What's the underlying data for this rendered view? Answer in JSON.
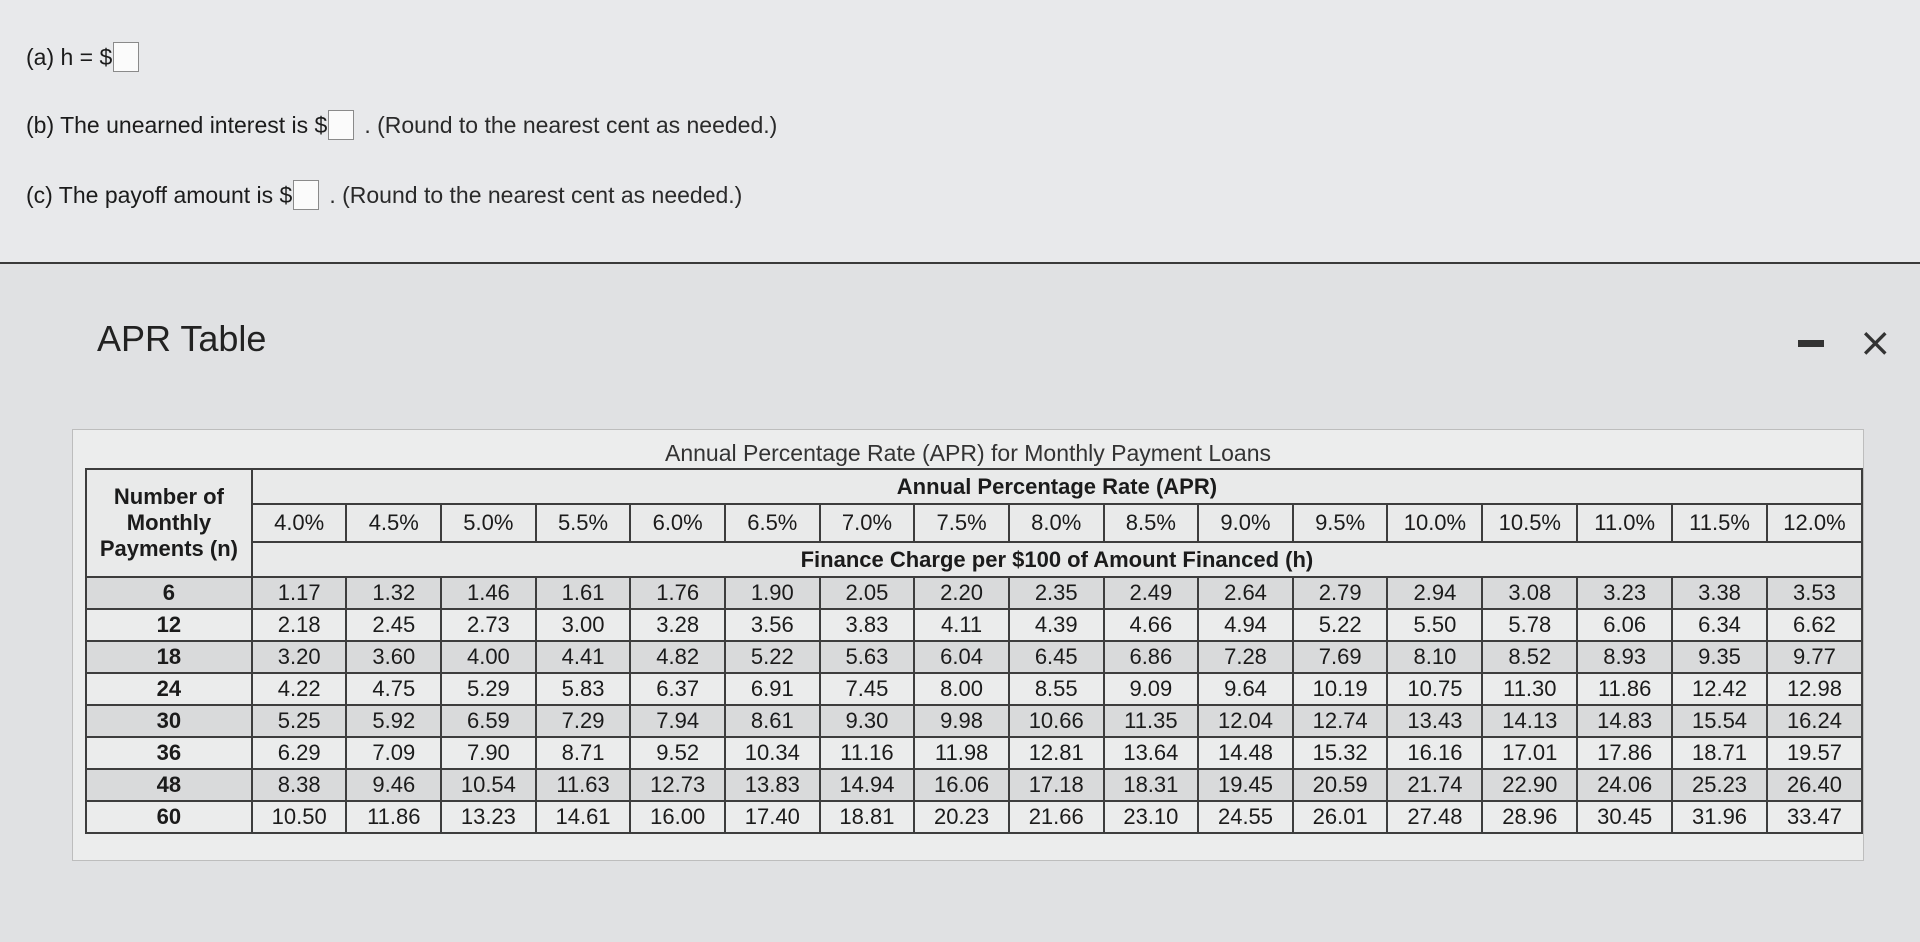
{
  "questions": {
    "a": {
      "lead": "(a) h = $",
      "hint": ""
    },
    "b": {
      "lead": "(b) The unearned interest is $",
      "hint": ". (Round to the nearest cent as needed.)"
    },
    "c": {
      "lead": "(c) The payoff amount is $",
      "hint": ". (Round to the nearest cent as needed.)"
    }
  },
  "window": {
    "title": "APR Table",
    "minimize_icon": "minimize-icon",
    "close_icon": "close-icon",
    "close_glyph": "×"
  },
  "table": {
    "caption": "Annual Percentage Rate (APR) for Monthly Payment Loans",
    "row_header": "Number of Monthly Payments (n)",
    "apr_header": "Annual Percentage Rate (APR)",
    "finance_header": "Finance Charge per $100 of Amount Financed (h)",
    "rates": [
      "4.0%",
      "4.5%",
      "5.0%",
      "5.5%",
      "6.0%",
      "6.5%",
      "7.0%",
      "7.5%",
      "8.0%",
      "8.5%",
      "9.0%",
      "9.5%",
      "10.0%",
      "10.5%",
      "11.0%",
      "11.5%",
      "12.0%"
    ],
    "rows": [
      {
        "n": "6",
        "values": [
          "1.17",
          "1.32",
          "1.46",
          "1.61",
          "1.76",
          "1.90",
          "2.05",
          "2.20",
          "2.35",
          "2.49",
          "2.64",
          "2.79",
          "2.94",
          "3.08",
          "3.23",
          "3.38",
          "3.53"
        ]
      },
      {
        "n": "12",
        "values": [
          "2.18",
          "2.45",
          "2.73",
          "3.00",
          "3.28",
          "3.56",
          "3.83",
          "4.11",
          "4.39",
          "4.66",
          "4.94",
          "5.22",
          "5.50",
          "5.78",
          "6.06",
          "6.34",
          "6.62"
        ]
      },
      {
        "n": "18",
        "values": [
          "3.20",
          "3.60",
          "4.00",
          "4.41",
          "4.82",
          "5.22",
          "5.63",
          "6.04",
          "6.45",
          "6.86",
          "7.28",
          "7.69",
          "8.10",
          "8.52",
          "8.93",
          "9.35",
          "9.77"
        ]
      },
      {
        "n": "24",
        "values": [
          "4.22",
          "4.75",
          "5.29",
          "5.83",
          "6.37",
          "6.91",
          "7.45",
          "8.00",
          "8.55",
          "9.09",
          "9.64",
          "10.19",
          "10.75",
          "11.30",
          "11.86",
          "12.42",
          "12.98"
        ]
      },
      {
        "n": "30",
        "values": [
          "5.25",
          "5.92",
          "6.59",
          "7.29",
          "7.94",
          "8.61",
          "9.30",
          "9.98",
          "10.66",
          "11.35",
          "12.04",
          "12.74",
          "13.43",
          "14.13",
          "14.83",
          "15.54",
          "16.24"
        ]
      },
      {
        "n": "36",
        "values": [
          "6.29",
          "7.09",
          "7.90",
          "8.71",
          "9.52",
          "10.34",
          "11.16",
          "11.98",
          "12.81",
          "13.64",
          "14.48",
          "15.32",
          "16.16",
          "17.01",
          "17.86",
          "18.71",
          "19.57"
        ]
      },
      {
        "n": "48",
        "values": [
          "8.38",
          "9.46",
          "10.54",
          "11.63",
          "12.73",
          "13.83",
          "14.94",
          "16.06",
          "17.18",
          "18.31",
          "19.45",
          "20.59",
          "21.74",
          "22.90",
          "24.06",
          "25.23",
          "26.40"
        ]
      },
      {
        "n": "60",
        "values": [
          "10.50",
          "11.86",
          "13.23",
          "14.61",
          "16.00",
          "17.40",
          "18.81",
          "20.23",
          "21.66",
          "23.10",
          "24.55",
          "26.01",
          "27.48",
          "28.96",
          "30.45",
          "31.96",
          "33.47"
        ]
      }
    ]
  }
}
